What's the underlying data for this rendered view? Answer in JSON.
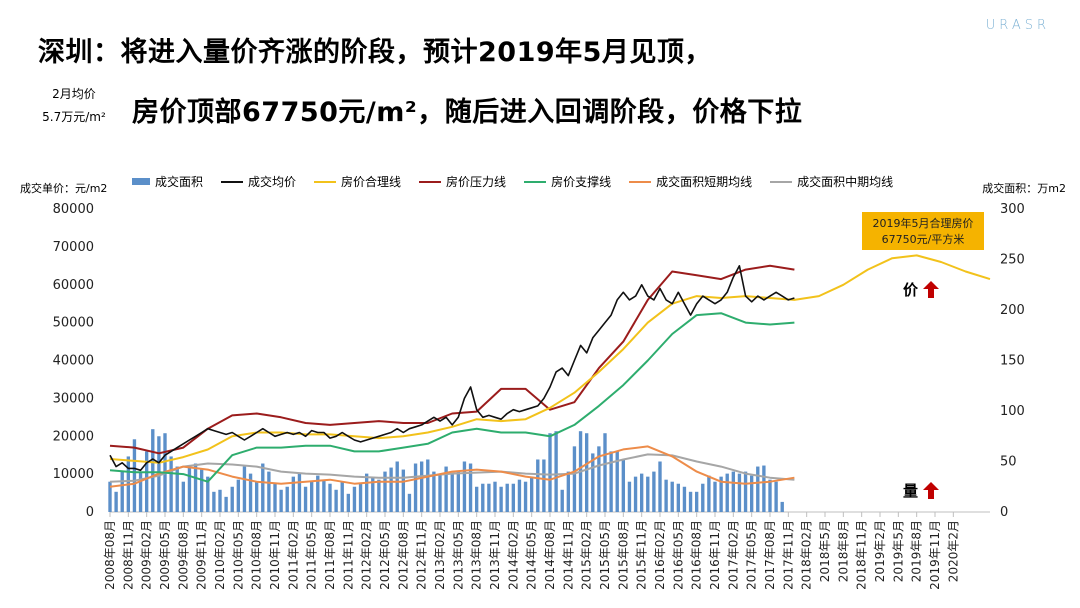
{
  "title_line1": "深圳：将进入量价齐涨的阶段，预计2019年5月见顶，",
  "title_line2": "房价顶部67750元/m²，随后进入回调阶段，价格下拉",
  "note_line1": "2月均价",
  "note_line2": "5.7万元/m²",
  "logo": "URASR",
  "chart_data": {
    "type": "line",
    "ylabel_left": "成交单价：元/m2",
    "ylabel_right": "成交面积：万m2",
    "ylim_left": [
      0,
      80000
    ],
    "ylim_right": [
      0,
      300
    ],
    "yticks_left": [
      0,
      10000,
      20000,
      30000,
      40000,
      50000,
      60000,
      70000,
      80000
    ],
    "yticks_right": [
      0,
      50,
      100,
      150,
      200,
      250,
      300
    ],
    "x_tick_labels": [
      "2008年08月",
      "2008年11月",
      "2009年02月",
      "2009年05月",
      "2009年08月",
      "2009年11月",
      "2010年02月",
      "2010年05月",
      "2010年08月",
      "2010年11月",
      "2011年02月",
      "2011年05月",
      "2011年08月",
      "2011年11月",
      "2012年02月",
      "2012年05月",
      "2012年08月",
      "2012年11月",
      "2013年02月",
      "2013年05月",
      "2013年08月",
      "2013年11月",
      "2014年02月",
      "2014年05月",
      "2014年08月",
      "2014年11月",
      "2015年02月",
      "2015年05月",
      "2015年08月",
      "2015年11月",
      "2016年02月",
      "2016年05月",
      "2016年08月",
      "2016年11月",
      "2017年02月",
      "2017年05月",
      "2017年08月",
      "2017年11月",
      "2018年02月",
      "2018年5月",
      "2018年8月",
      "2018年11月",
      "2019年2月",
      "2019年5月",
      "2019年8月",
      "2019年11月",
      "2020年2月"
    ],
    "legend": [
      "成交面积",
      "成交均价",
      "房价合理线",
      "房价压力线",
      "房价支撑线",
      "成交面积短期均线",
      "成交面积中期均线"
    ],
    "colors": {
      "area_bar": "#5b8fc9",
      "avg_price": "#111111",
      "fair_line": "#f2c21b",
      "pressure_line": "#9b1c1c",
      "support_line": "#2ead6e",
      "short_ma": "#ed8c4a",
      "mid_ma": "#a6a6a6",
      "arrow": "#c00000",
      "callout_bg": "#f5b300"
    },
    "series": [
      {
        "name": "成交均价",
        "axis": "left",
        "x": [
          0,
          1,
          2,
          3,
          4,
          5,
          6,
          7,
          8,
          9,
          10,
          11,
          12,
          13,
          14,
          15,
          16,
          17,
          18,
          19,
          20,
          21,
          22,
          23,
          24,
          25,
          26,
          27,
          28,
          29,
          30,
          31,
          32,
          33,
          34,
          35,
          36,
          37,
          38,
          39,
          40,
          41,
          42,
          43,
          44,
          45,
          46,
          47,
          48,
          49,
          50,
          51,
          52,
          53,
          54,
          55,
          56,
          57,
          58,
          59,
          60,
          61,
          62,
          63,
          64,
          65,
          66,
          67,
          68,
          69,
          70,
          71,
          72,
          73,
          74,
          75,
          76,
          77,
          78,
          79,
          80,
          81,
          82,
          83,
          84,
          85,
          86,
          87,
          88,
          89,
          90,
          91,
          92,
          93,
          94,
          95,
          96,
          97,
          98,
          99,
          100,
          101,
          102,
          103,
          104,
          105,
          106,
          107,
          108,
          109,
          110,
          111,
          112
        ],
        "y": [
          15000,
          12000,
          13000,
          11500,
          11500,
          11000,
          13000,
          14000,
          13000,
          15000,
          16000,
          17000,
          18000,
          19000,
          20000,
          21000,
          22000,
          21500,
          21000,
          20500,
          21000,
          20000,
          19000,
          20000,
          21000,
          22000,
          21000,
          20000,
          20500,
          21000,
          20500,
          21000,
          20000,
          21500,
          21000,
          21000,
          19500,
          20000,
          21000,
          20000,
          19000,
          18500,
          19000,
          19500,
          20000,
          20500,
          21000,
          22000,
          21000,
          22000,
          22500,
          23000,
          24000,
          25000,
          24000,
          25000,
          23000,
          25000,
          30000,
          33000,
          27000,
          25000,
          25500,
          25000,
          24500,
          26000,
          27000,
          26500,
          27000,
          27500,
          28000,
          30000,
          33000,
          37000,
          38000,
          36000,
          40000,
          44000,
          42000,
          46000,
          48000,
          50000,
          52000,
          56000,
          58000,
          56000,
          57000,
          60000,
          57000,
          56000,
          59000,
          56000,
          55000,
          58000,
          55000,
          52000,
          55000,
          57000,
          56000,
          55000,
          56000,
          58000,
          62000,
          65000,
          57000,
          55500,
          57000,
          56000,
          57000,
          58000,
          57000,
          56000,
          56500
        ]
      },
      {
        "name": "房价合理线",
        "axis": "left",
        "x": [
          0,
          4,
          8,
          12,
          16,
          20,
          24,
          28,
          32,
          36,
          40,
          44,
          48,
          52,
          56,
          60,
          64,
          68,
          72,
          76,
          80,
          84,
          88,
          92,
          96,
          100,
          104,
          108,
          112,
          116,
          120,
          124,
          128,
          132,
          136,
          140,
          144
        ],
        "y": [
          14000,
          13500,
          13000,
          14500,
          16500,
          20000,
          21000,
          21000,
          20500,
          20500,
          20000,
          19500,
          20000,
          21000,
          22500,
          24500,
          24000,
          24500,
          27500,
          31500,
          37000,
          43000,
          50000,
          55000,
          57000,
          56500,
          57000,
          56500,
          56000,
          57000,
          60000,
          64000,
          67000,
          67750,
          66000,
          63500,
          61500
        ]
      },
      {
        "name": "房价压力线",
        "axis": "left",
        "x": [
          0,
          4,
          8,
          12,
          16,
          20,
          24,
          28,
          32,
          36,
          40,
          44,
          48,
          52,
          56,
          60,
          64,
          68,
          72,
          76,
          80,
          84,
          88,
          92,
          96,
          100,
          104,
          108,
          112
        ],
        "y": [
          17500,
          17000,
          15500,
          17000,
          22000,
          25500,
          26000,
          25000,
          23500,
          23000,
          23500,
          24000,
          23500,
          23500,
          26000,
          26500,
          32500,
          32500,
          27000,
          29000,
          38000,
          45000,
          56000,
          63500,
          62500,
          61500,
          64000,
          65000,
          64000
        ]
      },
      {
        "name": "房价支撑线",
        "axis": "left",
        "x": [
          0,
          4,
          8,
          12,
          16,
          20,
          24,
          28,
          32,
          36,
          40,
          44,
          48,
          52,
          56,
          60,
          64,
          68,
          72,
          76,
          80,
          84,
          88,
          92,
          96,
          100,
          104,
          108,
          112
        ],
        "y": [
          11000,
          10500,
          10500,
          10000,
          8000,
          15000,
          17000,
          17000,
          17500,
          17500,
          16000,
          16000,
          17000,
          18000,
          21000,
          22000,
          21000,
          21000,
          20000,
          23000,
          28000,
          33500,
          40000,
          47000,
          52000,
          52500,
          50000,
          49500,
          50000
        ]
      },
      {
        "name": "成交面积短期均线",
        "axis": "right",
        "x": [
          0,
          4,
          8,
          12,
          16,
          20,
          24,
          28,
          32,
          36,
          40,
          44,
          48,
          52,
          56,
          60,
          64,
          68,
          72,
          76,
          80,
          84,
          88,
          92,
          96,
          100,
          104,
          108,
          112
        ],
        "y": [
          25,
          28,
          38,
          45,
          42,
          35,
          30,
          28,
          30,
          32,
          28,
          30,
          30,
          35,
          40,
          42,
          40,
          35,
          32,
          40,
          55,
          62,
          65,
          55,
          40,
          30,
          28,
          30,
          34
        ]
      },
      {
        "name": "成交面积中期均线",
        "axis": "right",
        "x": [
          0,
          4,
          8,
          12,
          16,
          20,
          24,
          28,
          32,
          36,
          40,
          44,
          48,
          52,
          56,
          60,
          64,
          68,
          72,
          76,
          80,
          84,
          88,
          92,
          96,
          100,
          104,
          108,
          112
        ],
        "y": [
          30,
          31,
          36,
          45,
          48,
          47,
          45,
          40,
          38,
          37,
          35,
          34,
          34,
          36,
          38,
          39,
          40,
          38,
          37,
          38,
          46,
          52,
          57,
          56,
          50,
          45,
          38,
          34,
          32
        ]
      },
      {
        "name": "成交面积",
        "axis": "right",
        "type": "bar",
        "x": [
          0,
          1,
          2,
          3,
          4,
          5,
          6,
          7,
          8,
          9,
          10,
          11,
          12,
          13,
          14,
          15,
          16,
          17,
          18,
          19,
          20,
          21,
          22,
          23,
          24,
          25,
          26,
          27,
          28,
          29,
          30,
          31,
          32,
          33,
          34,
          35,
          36,
          37,
          38,
          39,
          40,
          41,
          42,
          43,
          44,
          45,
          46,
          47,
          48,
          49,
          50,
          51,
          52,
          53,
          54,
          55,
          56,
          57,
          58,
          59,
          60,
          61,
          62,
          63,
          64,
          65,
          66,
          67,
          68,
          69,
          70,
          71,
          72,
          73,
          74,
          75,
          76,
          77,
          78,
          79,
          80,
          81,
          82,
          83,
          84,
          85,
          86,
          87,
          88,
          89,
          90,
          91,
          92,
          93,
          94,
          95,
          96,
          97,
          98,
          99,
          100,
          101,
          102,
          103,
          104,
          105,
          106,
          107,
          108,
          109,
          110,
          111,
          112
        ],
        "y": [
          30,
          20,
          40,
          55,
          72,
          40,
          60,
          82,
          75,
          78,
          55,
          45,
          30,
          45,
          48,
          42,
          35,
          20,
          22,
          15,
          25,
          32,
          45,
          38,
          30,
          48,
          40,
          28,
          22,
          25,
          35,
          38,
          25,
          30,
          36,
          32,
          28,
          22,
          30,
          18,
          25,
          28,
          38,
          35,
          32,
          40,
          44,
          50,
          42,
          18,
          48,
          50,
          52,
          40,
          38,
          45,
          38,
          40,
          50,
          48,
          25,
          28,
          28,
          30,
          25,
          28,
          28,
          32,
          30,
          35,
          52,
          52,
          78,
          80,
          22,
          40,
          65,
          80,
          78,
          58,
          65,
          78,
          60,
          60,
          52,
          30,
          35,
          38,
          35,
          40,
          50,
          32,
          30,
          28,
          25,
          20,
          20,
          28,
          36,
          30,
          35,
          38,
          40,
          38,
          40,
          36,
          45,
          46,
          32,
          30,
          10,
          0,
          0
        ]
      }
    ],
    "annotation": {
      "text_line1": "2019年5月合理房价",
      "text_line2": "67750元/平方米"
    },
    "markers": [
      {
        "label": "价"
      },
      {
        "label": "量"
      }
    ],
    "grid": false
  }
}
